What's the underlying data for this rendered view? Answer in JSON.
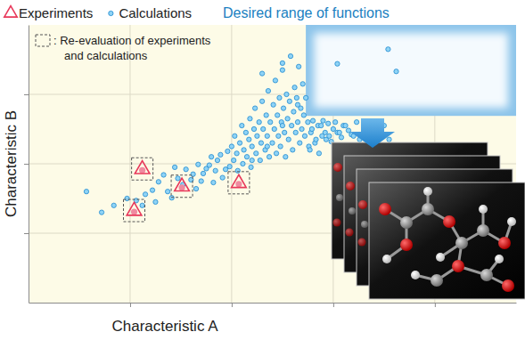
{
  "chart_data": {
    "type": "scatter",
    "x_label": "Characteristic A",
    "y_label": "Characteristic B",
    "xlim": [
      0,
      4.8
    ],
    "ylim": [
      0,
      4
    ],
    "xticks": [
      1,
      2,
      3,
      4
    ],
    "yticks": [
      1,
      2,
      3
    ],
    "grid": true,
    "tick_labels": false,
    "series": [
      {
        "name": "Experiments",
        "color": "#e8385a",
        "marker": "triangle",
        "x": [
          1.12,
          1.51,
          2.07,
          1.04
        ],
        "values": [
          1.92,
          1.67,
          1.72,
          1.32
        ]
      },
      {
        "name": "Calculations",
        "color": "#1f8ad0",
        "marker": "circle",
        "x": [
          0.57,
          0.72,
          0.84,
          0.97,
          1.06,
          1.15,
          1.22,
          1.28,
          1.33,
          1.44,
          1.37,
          1.41,
          1.47,
          1.55,
          1.6,
          1.65,
          1.67,
          1.72,
          1.75,
          1.82,
          1.86,
          1.89,
          1.91,
          1.94,
          1.96,
          1.98,
          1.12,
          1.25,
          1.52,
          1.62,
          1.7,
          1.78,
          1.8,
          1.84,
          2.0,
          2.02,
          2.03,
          2.05,
          2.06,
          2.08,
          2.1,
          2.11,
          2.12,
          2.14,
          2.15,
          2.17,
          2.18,
          2.19,
          2.2,
          2.22,
          2.23,
          2.24,
          2.25,
          2.27,
          2.28,
          2.29,
          2.3,
          2.31,
          2.33,
          2.34,
          2.35,
          2.36,
          2.37,
          2.38,
          2.4,
          2.41,
          2.42,
          2.43,
          2.44,
          2.45,
          2.46,
          2.47,
          2.48,
          2.49,
          2.5,
          2.51,
          2.52,
          2.53,
          2.54,
          2.55,
          2.56,
          2.57,
          2.58,
          2.59,
          2.6,
          2.61,
          2.62,
          2.63,
          2.64,
          2.65,
          2.66,
          2.67,
          2.68,
          2.69,
          2.7,
          2.71,
          2.72,
          2.73,
          2.75,
          2.76,
          2.77,
          2.78,
          2.79,
          2.8,
          2.82,
          2.83,
          2.85,
          2.86,
          2.88,
          2.89,
          2.9,
          2.92,
          2.93,
          2.95,
          2.96,
          2.98,
          3.0,
          3.02,
          3.04,
          3.06,
          3.08,
          3.1,
          3.12,
          3.15,
          3.18,
          3.2,
          3.23,
          3.26,
          3.3,
          3.4,
          3.45,
          3.5,
          3.55,
          2.2,
          2.35,
          2.5,
          2.65,
          2.5,
          2.3,
          3.04,
          3.54,
          3.62
        ],
        "values": [
          1.6,
          1.3,
          1.4,
          1.5,
          1.47,
          1.56,
          1.62,
          1.74,
          1.84,
          1.95,
          1.6,
          1.51,
          1.79,
          1.92,
          1.77,
          1.64,
          1.99,
          1.86,
          1.93,
          1.73,
          2.05,
          2.13,
          1.8,
          1.92,
          2.18,
          1.96,
          1.4,
          1.45,
          1.7,
          1.85,
          1.75,
          1.98,
          2.1,
          1.9,
          2.25,
          2.05,
          2.4,
          2.15,
          1.9,
          2.3,
          2.55,
          2.0,
          2.2,
          2.45,
          2.1,
          2.35,
          2.65,
          1.95,
          2.25,
          2.5,
          2.8,
          2.15,
          2.4,
          2.6,
          2.05,
          2.3,
          2.9,
          2.5,
          2.2,
          2.7,
          2.4,
          3.05,
          2.1,
          2.6,
          2.3,
          2.85,
          2.5,
          3.2,
          2.15,
          2.7,
          2.4,
          2.95,
          2.25,
          2.6,
          3.35,
          2.8,
          2.45,
          2.1,
          3.0,
          2.65,
          2.35,
          2.9,
          3.55,
          2.55,
          2.2,
          2.75,
          3.1,
          2.45,
          2.95,
          2.6,
          3.4,
          2.3,
          2.8,
          2.5,
          3.15,
          2.7,
          2.4,
          2.95,
          2.6,
          2.25,
          2.2,
          2.45,
          2.5,
          2.62,
          2.3,
          2.35,
          2.55,
          2.15,
          2.55,
          2.4,
          2.62,
          2.45,
          2.35,
          2.58,
          2.4,
          2.32,
          2.5,
          2.6,
          2.45,
          2.45,
          2.38,
          2.55,
          2.55,
          2.48,
          2.42,
          2.4,
          2.6,
          2.35,
          2.5,
          2.45,
          2.38,
          2.55,
          2.35,
          2.05,
          2.25,
          2.55,
          2.85,
          3.45,
          3.3,
          3.44,
          3.65,
          3.33
        ]
      }
    ],
    "annotations": {
      "desired_range": {
        "label": "Desired range of functions",
        "xlim": [
          2.73,
          4.8
        ],
        "ylim": [
          2.69,
          4
        ]
      },
      "re_evaluation": [
        ": Re-evaluation of experiments",
        "and calculations"
      ]
    }
  }
}
